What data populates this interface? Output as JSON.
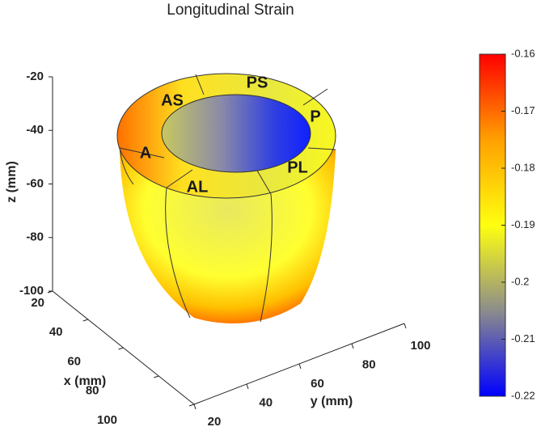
{
  "chart_data": {
    "type": "surface3d",
    "title": "Longitudinal Strain",
    "xlabel": "x (mm)",
    "ylabel": "y (mm)",
    "zlabel": "z (mm)",
    "xlim": [
      20,
      100
    ],
    "xticks": [
      20,
      40,
      60,
      80,
      100
    ],
    "ylim": [
      20,
      100
    ],
    "yticks": [
      20,
      40,
      60,
      80,
      100
    ],
    "zlim": [
      -100,
      -20
    ],
    "zticks": [
      -100,
      -80,
      -60,
      -40,
      -20
    ],
    "segments": [
      "AS",
      "PS",
      "P",
      "PL",
      "AL",
      "A"
    ],
    "clim": [
      -0.22,
      -0.16
    ],
    "cticks": [
      -0.22,
      -0.21,
      -0.2,
      -0.19,
      -0.18,
      -0.17,
      -0.16
    ],
    "colormap": [
      "#0000ff",
      "#8c8c8c",
      "#ffff10",
      "#ffa000",
      "#ff0000"
    ]
  }
}
